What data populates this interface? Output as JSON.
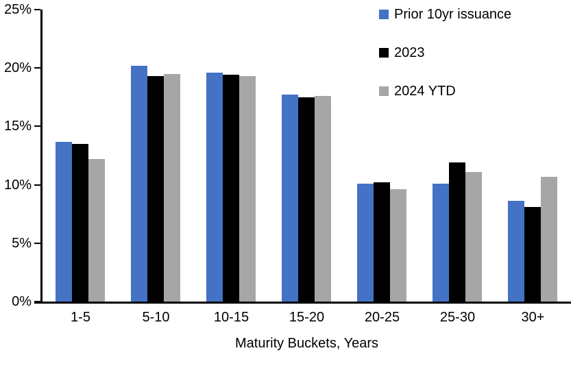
{
  "chart_data": {
    "type": "bar",
    "title": "",
    "categories": [
      "1-5",
      "5-10",
      "10-15",
      "15-20",
      "20-25",
      "25-30",
      "30+"
    ],
    "series": [
      {
        "name": "Prior 10yr issuance",
        "color": "#4472C4",
        "values": [
          13.7,
          20.2,
          19.6,
          17.7,
          10.1,
          10.1,
          8.6
        ]
      },
      {
        "name": "2023",
        "color": "#000000",
        "values": [
          13.5,
          19.3,
          19.4,
          17.5,
          10.2,
          11.9,
          8.1
        ]
      },
      {
        "name": "2024 YTD",
        "color": "#A6A6A6",
        "values": [
          12.2,
          19.5,
          19.3,
          17.6,
          9.6,
          11.1,
          10.7
        ]
      }
    ],
    "xlabel": "Maturity Buckets, Years",
    "ylabel": "",
    "ylim": [
      0,
      25
    ],
    "ytick_step": 5,
    "ytick_labels": [
      "0%",
      "5%",
      "10%",
      "15%",
      "20%",
      "25%"
    ],
    "grid": false,
    "legend_position": "top-right",
    "axis_color": "#000000",
    "background_color": "#FFFFFF"
  }
}
